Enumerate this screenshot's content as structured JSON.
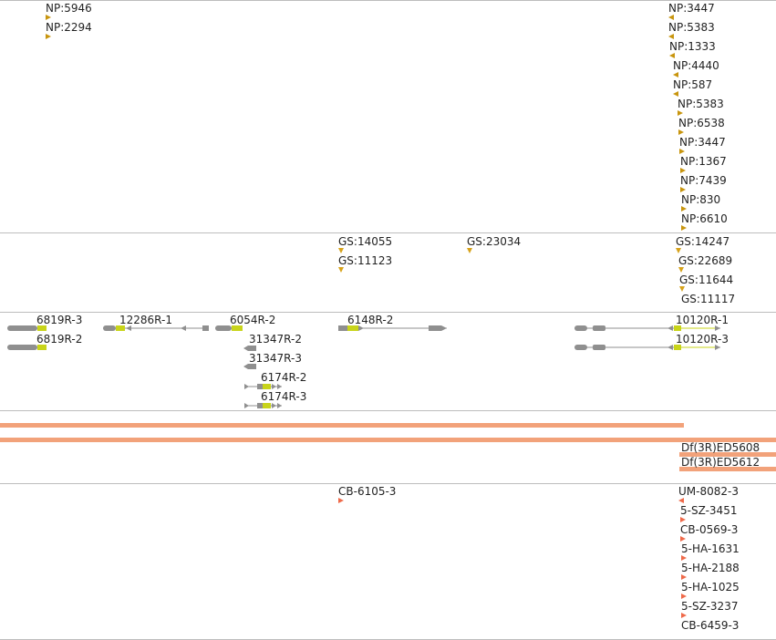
{
  "np_track": {
    "left_items": [
      "NP:5946",
      "NP:2294"
    ],
    "right_items": [
      "NP:3447",
      "NP:5383",
      "NP:1333",
      "NP:4440",
      "NP:587",
      "NP:5383",
      "NP:6538",
      "NP:3447",
      "NP:1367",
      "NP:7439",
      "NP:830",
      "NP:6610"
    ]
  },
  "gs_track": {
    "mid_items": [
      "GS:14055",
      "GS:11123"
    ],
    "mid2_items": [
      "GS:23034"
    ],
    "right_items": [
      "GS:14247",
      "GS:22689",
      "GS:11644",
      "GS:11117"
    ]
  },
  "gene_track": {
    "labels": [
      "6819R-3",
      "6819R-2",
      "12286R-1",
      "6054R-2",
      "31347R-2",
      "31347R-3",
      "6174R-2",
      "6174R-3",
      "6148R-2",
      "10120R-1",
      "10120R-3"
    ]
  },
  "deficiency_track": {
    "labels": [
      "Df(3R)ED5608",
      "Df(3R)ED5612"
    ]
  },
  "cb_track": {
    "mid_items": [
      "CB-6105-3"
    ],
    "right_items": [
      "UM-8082-3",
      "5-SZ-3451",
      "CB-0569-3",
      "5-HA-1631",
      "5-HA-2188",
      "5-HA-1025",
      "5-SZ-3237",
      "CB-6459-3"
    ]
  },
  "colors": {
    "np_marker": "#c8950e",
    "gs_marker": "#d7a21a",
    "gene_body": "#8f8f8f",
    "gene_utr": "#c8d41a",
    "deficiency_band": "#f2a27a",
    "cb_marker": "#ef6a4a"
  }
}
